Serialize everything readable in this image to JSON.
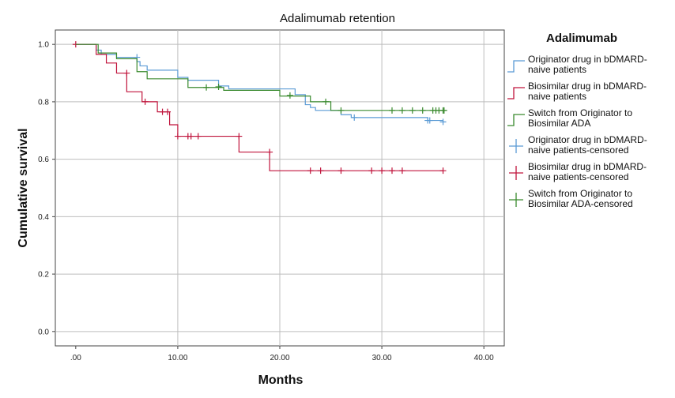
{
  "chart_data": {
    "type": "line",
    "subtype": "kaplan-meier step",
    "title": "Adalimumab retention",
    "xlabel": "Months",
    "ylabel": "Cumulative survival",
    "xlim": [
      -2,
      42
    ],
    "ylim": [
      -0.05,
      1.05
    ],
    "x_ticks": [
      0,
      10,
      20,
      30,
      40
    ],
    "x_tick_labels": [
      ".00",
      "10.00",
      "20.00",
      "30.00",
      "40.00"
    ],
    "y_ticks": [
      0,
      0.2,
      0.4,
      0.6,
      0.8,
      1.0
    ],
    "y_tick_labels": [
      "0.0",
      "0.2",
      "0.4",
      "0.6",
      "0.8",
      "1.0"
    ],
    "grid": true,
    "legend": {
      "title": "Adalimumab",
      "position": "right",
      "entries": [
        {
          "lines": [
            "Originator drug in bDMARD-",
            "naive patients"
          ],
          "style": "step",
          "color": "#5b9bd5"
        },
        {
          "lines": [
            "Biosimilar drug in bDMARD-",
            "naive patients"
          ],
          "style": "step",
          "color": "#c0143c"
        },
        {
          "lines": [
            "Switch from Originator to",
            "Biosimilar ADA"
          ],
          "style": "step",
          "color": "#3a8a2e"
        },
        {
          "lines": [
            "Originator drug in bDMARD-",
            "naive patients-censored"
          ],
          "style": "plus",
          "color": "#5b9bd5"
        },
        {
          "lines": [
            "Biosimilar drug in bDMARD-",
            "naive patients-censored"
          ],
          "style": "plus",
          "color": "#c0143c"
        },
        {
          "lines": [
            "Switch from Originator to",
            "Biosimilar ADA-censored"
          ],
          "style": "plus",
          "color": "#3a8a2e"
        }
      ]
    },
    "series": [
      {
        "color": "#5b9bd5",
        "steps": [
          [
            0,
            1.0
          ],
          [
            2,
            0.98
          ],
          [
            2.5,
            0.965
          ],
          [
            4,
            0.955
          ],
          [
            6,
            0.94
          ],
          [
            6.3,
            0.925
          ],
          [
            7,
            0.91
          ],
          [
            10,
            0.885
          ],
          [
            11,
            0.875
          ],
          [
            14,
            0.855
          ],
          [
            15,
            0.845
          ],
          [
            21.5,
            0.825
          ],
          [
            22.5,
            0.79
          ],
          [
            23,
            0.78
          ],
          [
            23.5,
            0.77
          ],
          [
            26,
            0.755
          ],
          [
            27,
            0.745
          ],
          [
            34.5,
            0.735
          ],
          [
            36,
            0.73
          ]
        ],
        "censored": [
          [
            6,
            0.955
          ],
          [
            27.3,
            0.745
          ],
          [
            34.5,
            0.735
          ],
          [
            34.7,
            0.735
          ],
          [
            36,
            0.73
          ]
        ]
      },
      {
        "color": "#c0143c",
        "steps": [
          [
            0,
            1.0
          ],
          [
            2,
            0.965
          ],
          [
            3,
            0.935
          ],
          [
            4,
            0.9
          ],
          [
            5,
            0.835
          ],
          [
            6.5,
            0.8
          ],
          [
            8,
            0.765
          ],
          [
            9.2,
            0.72
          ],
          [
            10,
            0.68
          ],
          [
            16,
            0.625
          ],
          [
            19,
            0.56
          ],
          [
            36,
            0.56
          ]
        ],
        "censored": [
          [
            0,
            1.0
          ],
          [
            5,
            0.9
          ],
          [
            6.8,
            0.8
          ],
          [
            8.5,
            0.765
          ],
          [
            9,
            0.765
          ],
          [
            10,
            0.68
          ],
          [
            11,
            0.68
          ],
          [
            11.3,
            0.68
          ],
          [
            12,
            0.68
          ],
          [
            16,
            0.68
          ],
          [
            19,
            0.625
          ],
          [
            23,
            0.56
          ],
          [
            24,
            0.56
          ],
          [
            26,
            0.56
          ],
          [
            29,
            0.56
          ],
          [
            30,
            0.56
          ],
          [
            31,
            0.56
          ],
          [
            32,
            0.56
          ],
          [
            36,
            0.56
          ]
        ]
      },
      {
        "color": "#3a8a2e",
        "steps": [
          [
            0,
            1.0
          ],
          [
            2.2,
            0.97
          ],
          [
            4,
            0.95
          ],
          [
            6,
            0.905
          ],
          [
            7,
            0.88
          ],
          [
            11,
            0.85
          ],
          [
            14.5,
            0.84
          ],
          [
            20,
            0.82
          ],
          [
            23,
            0.8
          ],
          [
            25,
            0.77
          ],
          [
            36,
            0.77
          ]
        ],
        "censored": [
          [
            12.8,
            0.85
          ],
          [
            14,
            0.852
          ],
          [
            21,
            0.822
          ],
          [
            24.5,
            0.8
          ],
          [
            26,
            0.77
          ],
          [
            31,
            0.77
          ],
          [
            32,
            0.77
          ],
          [
            33,
            0.77
          ],
          [
            34,
            0.77
          ],
          [
            35,
            0.77
          ],
          [
            35.3,
            0.77
          ],
          [
            35.6,
            0.77
          ],
          [
            36,
            0.77
          ],
          [
            36.1,
            0.77
          ]
        ]
      }
    ]
  }
}
